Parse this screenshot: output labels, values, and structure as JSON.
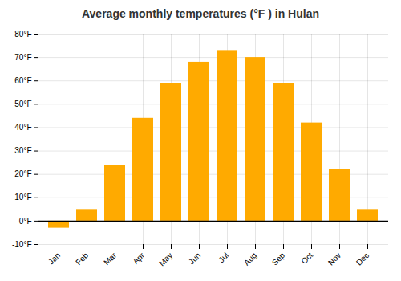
{
  "chart_data": {
    "type": "bar",
    "title": "Average monthly temperatures (°F ) in Hulan",
    "categories": [
      "Jan",
      "Feb",
      "Mar",
      "Apr",
      "May",
      "Jun",
      "Jul",
      "Aug",
      "Sep",
      "Oct",
      "Nov",
      "Dec"
    ],
    "values": [
      -3,
      5,
      24,
      44,
      59,
      68,
      73,
      70,
      59,
      42,
      22,
      5
    ],
    "color": "#FFAA00",
    "ylim": [
      -10,
      80
    ],
    "yticks": [
      {
        "value": -10,
        "label": "-10°F"
      },
      {
        "value": 0,
        "label": "0°F"
      },
      {
        "value": 10,
        "label": "10°F"
      },
      {
        "value": 20,
        "label": "20°F"
      },
      {
        "value": 30,
        "label": "30°F"
      },
      {
        "value": 40,
        "label": "40°F"
      },
      {
        "value": 50,
        "label": "50°F"
      },
      {
        "value": 60,
        "label": "60°F"
      },
      {
        "value": 70,
        "label": "70°F"
      },
      {
        "value": 80,
        "label": "80°F"
      }
    ],
    "grid": true
  }
}
